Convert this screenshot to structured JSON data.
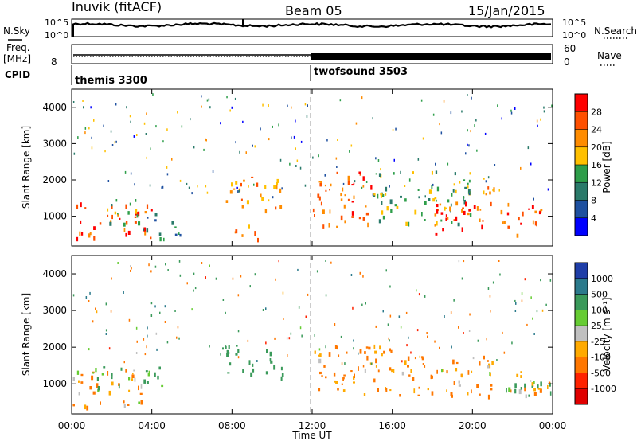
{
  "header": {
    "station": "Inuvik (fitACF)",
    "beam": "Beam 05",
    "date": "15/Jan/2015"
  },
  "top_panels": {
    "nsky": {
      "left_label": "N.Sky",
      "right_label": "N.Search",
      "left_ticks": [
        "10^5",
        "10^0"
      ],
      "right_ticks": [
        "10^5",
        "10^0"
      ]
    },
    "freq": {
      "left_label_1": "Freq.",
      "left_label_2": "[MHz]",
      "right_label": "Nave",
      "left_ticks": [
        "8"
      ],
      "right_ticks": [
        "60",
        "0"
      ]
    },
    "cpid": {
      "label": "CPID",
      "modes": [
        {
          "name": "themis 3300",
          "start_hour": 0
        },
        {
          "name": "twofsound 3503",
          "start_hour": 12
        }
      ]
    }
  },
  "colorbars": {
    "power": {
      "label": "Power [dB]",
      "ticks": [
        "28",
        "24",
        "20",
        "16",
        "12",
        "8",
        "4"
      ],
      "colors": [
        "#ff0000",
        "#ff5000",
        "#ff8c00",
        "#ffc000",
        "#2e9e4a",
        "#2a7a6a",
        "#1e50a0",
        "#0000ff"
      ]
    },
    "velocity": {
      "label": "Velocity [m s⁻¹]",
      "ticks": [
        "1000",
        "500",
        "100",
        "25",
        "-25",
        "-100",
        "-500",
        "-1000"
      ],
      "colors": [
        "#1f3ea8",
        "#2b7a8c",
        "#3a9a5a",
        "#66cc33",
        "#c0c0c0",
        "#ffaa00",
        "#ff7700",
        "#ff2200",
        "#e00000"
      ]
    }
  },
  "chart_data": [
    {
      "type": "heatmap",
      "panel": "power",
      "ylabel": "Slant Range [km]",
      "y_ticks": [
        1000,
        2000,
        3000,
        4000
      ],
      "ylim": [
        180,
        4500
      ],
      "xlim": [
        0,
        24
      ],
      "x_ticks": [
        "00:00",
        "04:00",
        "08:00",
        "12:00",
        "16:00",
        "20:00",
        "00:00"
      ],
      "blobs": [
        {
          "t0": 0.0,
          "t1": 4.0,
          "r0": 400,
          "r1": 1400,
          "val": 26
        },
        {
          "t0": 1.5,
          "t1": 3.5,
          "r0": 800,
          "r1": 1500,
          "val": 14
        },
        {
          "t0": 3.5,
          "t1": 5.5,
          "r0": 400,
          "r1": 1100,
          "val": 10
        },
        {
          "t0": 7.5,
          "t1": 10.5,
          "r0": 1200,
          "r1": 2100,
          "val": 22
        },
        {
          "t0": 8.0,
          "t1": 9.5,
          "r0": 350,
          "r1": 800,
          "val": 22
        },
        {
          "t0": 12.0,
          "t1": 15.0,
          "r0": 700,
          "r1": 2300,
          "val": 26
        },
        {
          "t0": 15.0,
          "t1": 20.0,
          "r0": 800,
          "r1": 2300,
          "val": 14
        },
        {
          "t0": 18.0,
          "t1": 24.0,
          "r0": 500,
          "r1": 1400,
          "val": 27
        },
        {
          "t0": 20.5,
          "t1": 21.5,
          "r0": 1600,
          "r1": 2200,
          "val": 20
        }
      ]
    },
    {
      "type": "heatmap",
      "panel": "velocity",
      "xlabel": "Time UT",
      "ylabel": "Slant Range [km]",
      "y_ticks": [
        1000,
        2000,
        3000,
        4000
      ],
      "ylim": [
        180,
        4500
      ],
      "xlim": [
        0,
        24
      ],
      "x_ticks": [
        "00:00",
        "04:00",
        "08:00",
        "12:00",
        "16:00",
        "20:00",
        "00:00"
      ],
      "blobs": [
        {
          "t0": 0.0,
          "t1": 4.0,
          "r0": 400,
          "r1": 1400,
          "val": -120
        },
        {
          "t0": 1.0,
          "t1": 4.5,
          "r0": 900,
          "r1": 1500,
          "val": 200
        },
        {
          "t0": 7.5,
          "t1": 10.5,
          "r0": 1200,
          "r1": 2100,
          "val": 300
        },
        {
          "t0": 12.0,
          "t1": 16.0,
          "r0": 700,
          "r1": 2100,
          "val": -200
        },
        {
          "t0": 16.0,
          "t1": 21.0,
          "r0": 700,
          "r1": 1800,
          "val": -150
        },
        {
          "t0": 21.0,
          "t1": 24.0,
          "r0": 700,
          "r1": 1400,
          "val": 10
        },
        {
          "t0": 22.0,
          "t1": 24.0,
          "r0": 800,
          "r1": 1300,
          "val": 120
        }
      ]
    }
  ]
}
